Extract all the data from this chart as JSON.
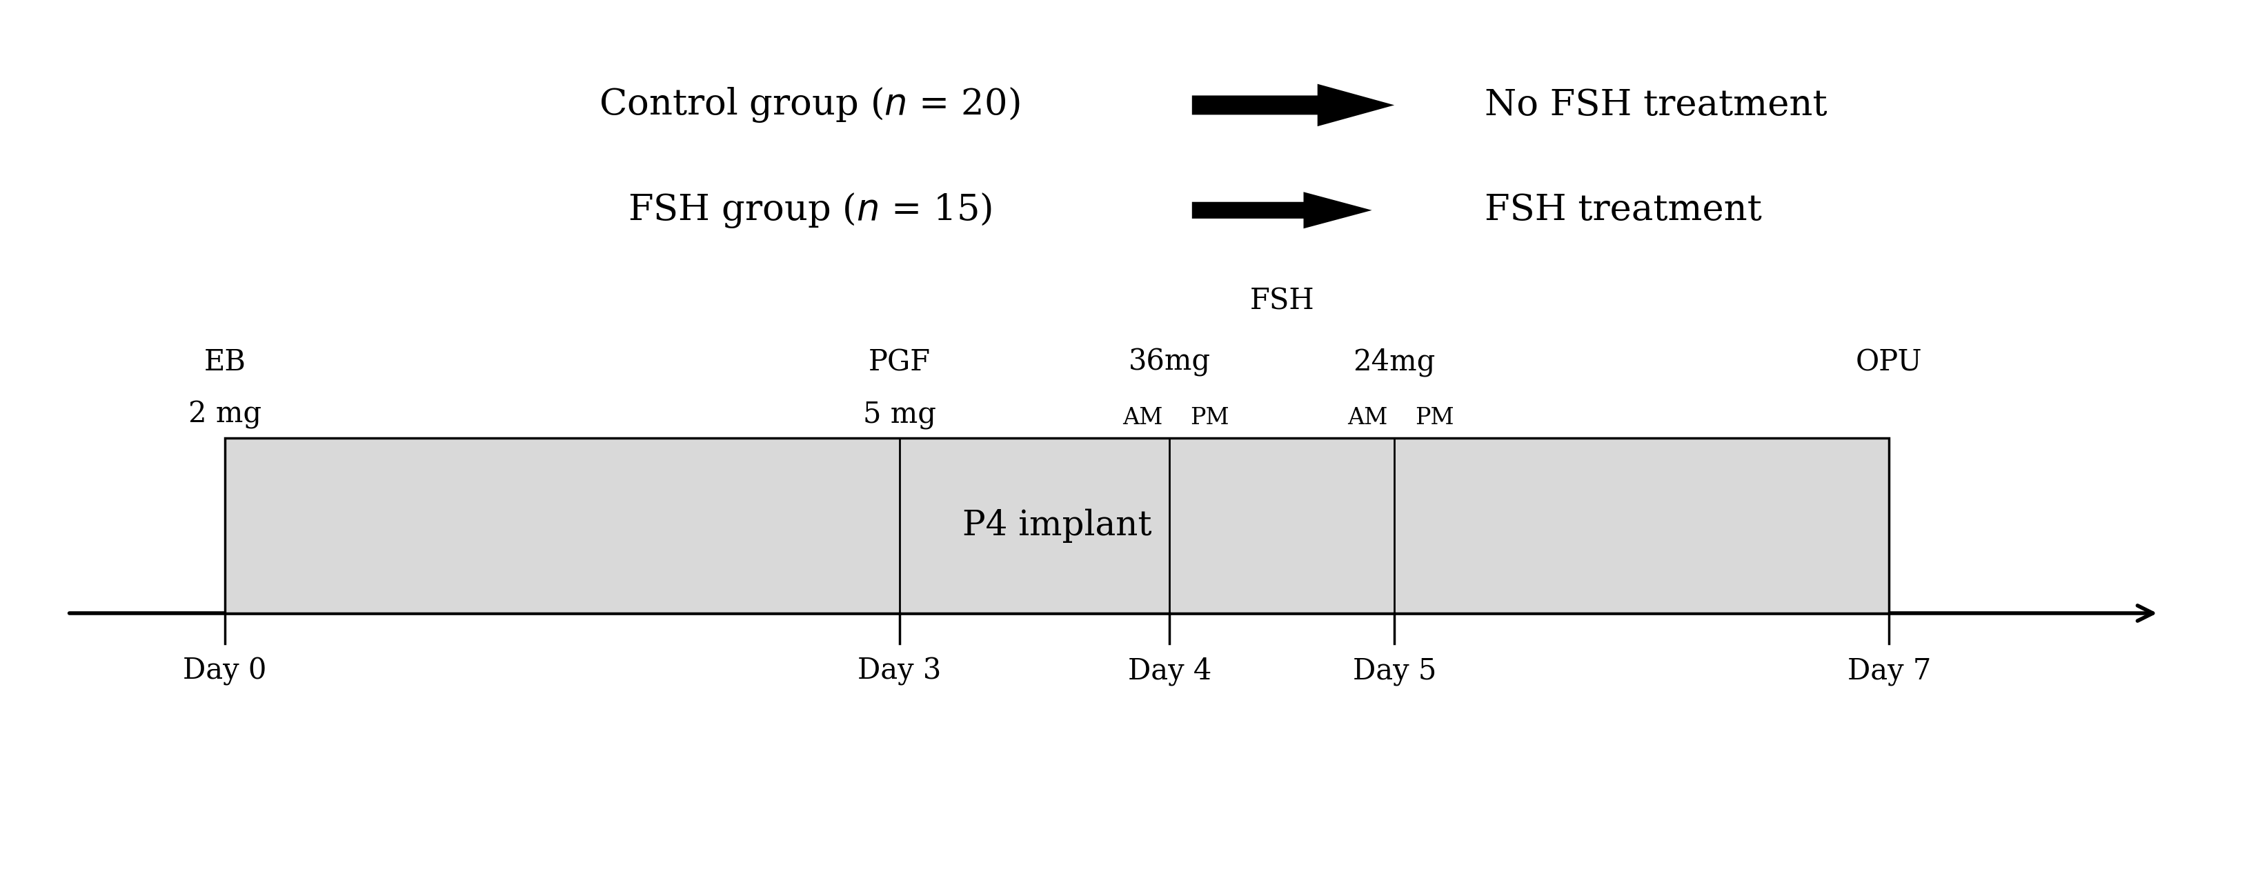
{
  "bg_color": "#ffffff",
  "fig_width": 32.6,
  "fig_height": 12.7,
  "bar_color": "#d9d9d9",
  "bar_edge_color": "#000000",
  "bar_label": "P4 implant",
  "day_labels": [
    "Day 0",
    "Day 3",
    "Day 4",
    "Day 5",
    "Day 7"
  ],
  "font_size_legend": 38,
  "font_size_annotation": 30,
  "font_size_ampm": 24,
  "font_size_bar": 36,
  "font_size_day": 30
}
